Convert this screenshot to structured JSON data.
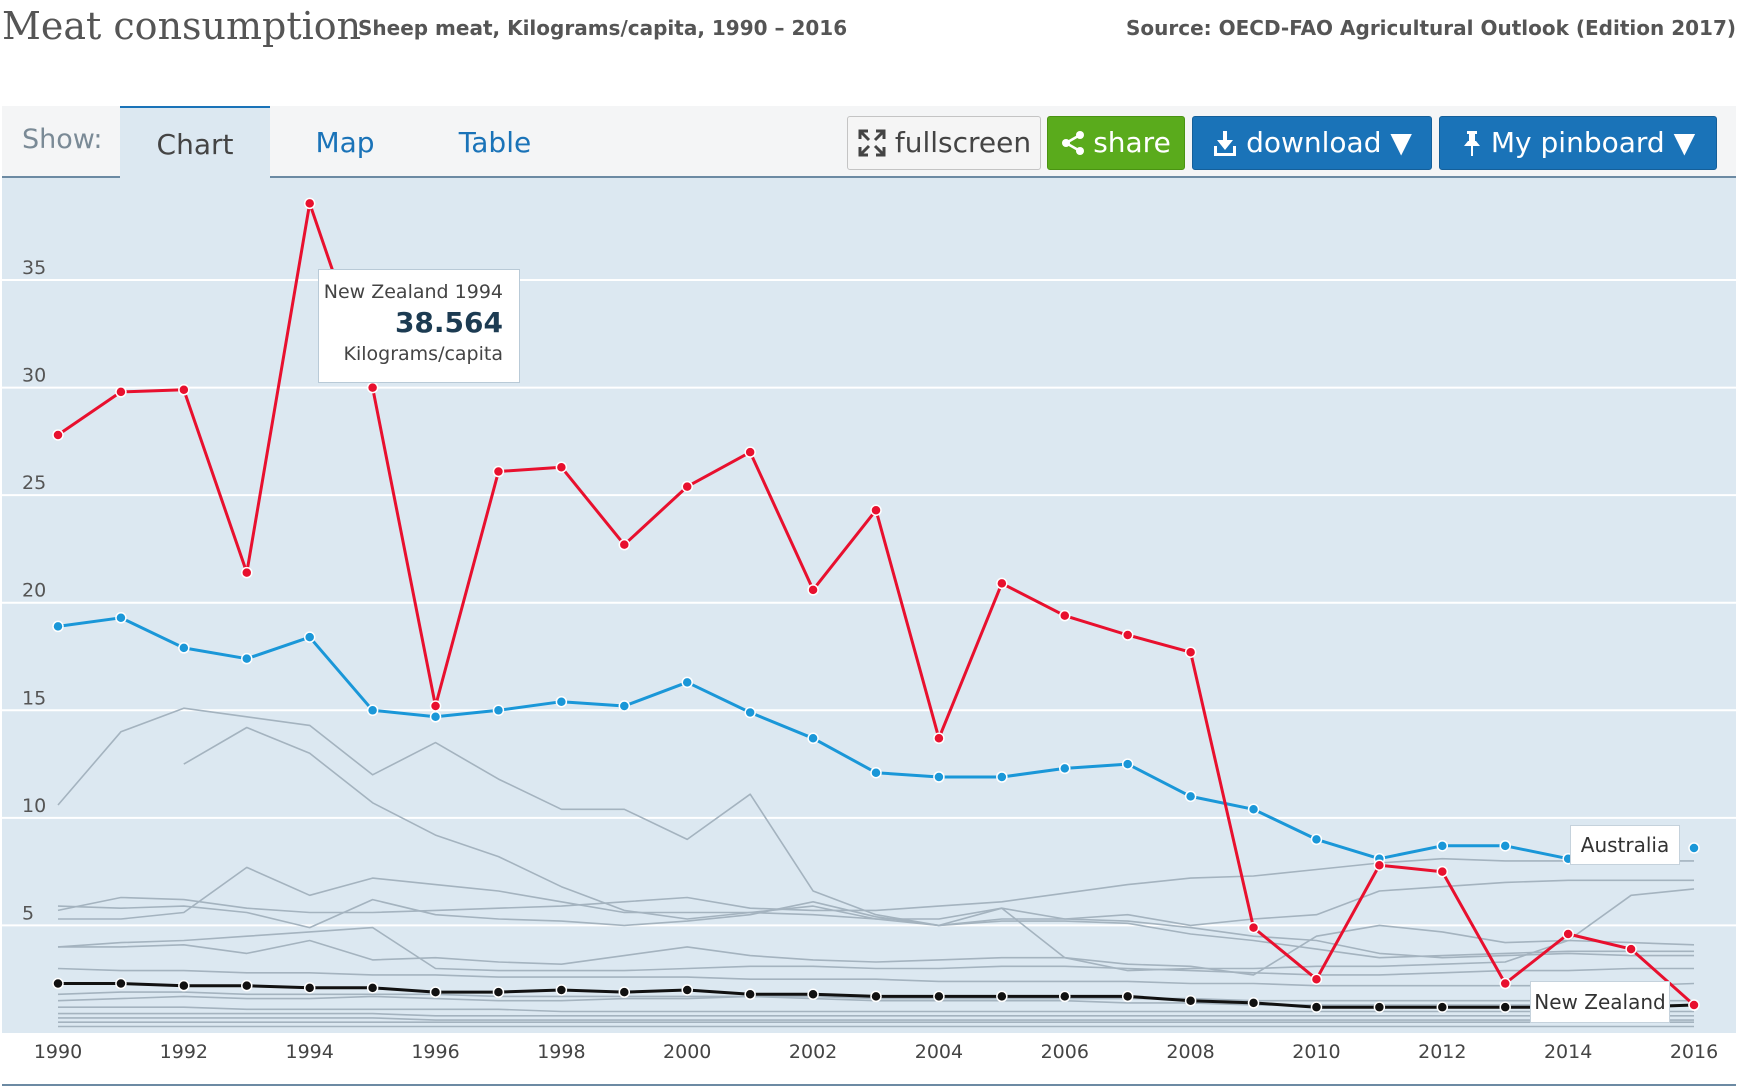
{
  "header": {
    "title": "Meat consumption",
    "subtitle": "Sheep meat, Kilograms/capita, 1990 – 2016",
    "source": "Source: OECD-FAO Agricultural Outlook (Edition 2017)"
  },
  "toolbar": {
    "show_label": "Show:",
    "tabs": [
      {
        "label": "Chart",
        "active": true
      },
      {
        "label": "Map",
        "active": false
      },
      {
        "label": "Table",
        "active": false
      }
    ],
    "fullscreen_label": "fullscreen",
    "share_label": "share",
    "download_label": "download ▼",
    "pinboard_label": "My pinboard ▼"
  },
  "tooltip": {
    "title": "New Zealand 1994",
    "value": "38.564",
    "unit": "Kilograms/capita"
  },
  "labels": {
    "australia": "Australia",
    "new_zealand": "New Zealand"
  },
  "colors": {
    "highlight_red": "#e8102e",
    "highlight_blue": "#1a97d8",
    "highlight_black": "#111111",
    "background_lines": "#a4b3bf",
    "plot_background": "#dce8f1"
  },
  "chart_data": {
    "type": "line",
    "title": "",
    "xlabel": "",
    "ylabel": "",
    "x": [
      1990,
      1991,
      1992,
      1993,
      1994,
      1995,
      1996,
      1997,
      1998,
      1999,
      2000,
      2001,
      2002,
      2003,
      2004,
      2005,
      2006,
      2007,
      2008,
      2009,
      2010,
      2011,
      2012,
      2013,
      2014,
      2015,
      2016
    ],
    "x_ticks": [
      1990,
      1992,
      1994,
      1996,
      1998,
      2000,
      2002,
      2004,
      2006,
      2008,
      2010,
      2012,
      2014,
      2016
    ],
    "y_ticks": [
      5,
      10,
      15,
      20,
      25,
      30,
      35
    ],
    "xlim": [
      1990,
      2016
    ],
    "ylim": [
      0,
      39
    ],
    "grid": "horizontal",
    "series": [
      {
        "name": "New Zealand",
        "highlight": "red",
        "values": [
          27.8,
          29.8,
          29.9,
          21.4,
          38.564,
          30.0,
          15.2,
          26.1,
          26.3,
          22.7,
          25.4,
          27.0,
          20.6,
          24.3,
          13.7,
          20.9,
          19.4,
          18.5,
          17.7,
          4.9,
          2.5,
          7.8,
          7.5,
          2.3,
          4.6,
          3.9,
          1.3
        ]
      },
      {
        "name": "Australia",
        "highlight": "blue",
        "values": [
          18.9,
          19.3,
          17.9,
          17.4,
          18.4,
          15.0,
          14.7,
          15.0,
          15.4,
          15.2,
          16.3,
          14.9,
          13.7,
          12.1,
          11.9,
          11.9,
          12.3,
          12.5,
          11.0,
          10.4,
          9.0,
          8.1,
          8.7,
          8.7,
          8.1,
          null,
          8.6
        ]
      },
      {
        "values": [
          2.3,
          2.3,
          2.2,
          2.2,
          2.1,
          2.1,
          1.9,
          1.9,
          2.0,
          1.9,
          2.0,
          1.8,
          1.8,
          1.7,
          1.7,
          1.7,
          1.7,
          1.7,
          1.5,
          1.4,
          1.2,
          1.2,
          1.2,
          1.2,
          1.2,
          1.2,
          1.3
        ],
        "highlight": "black"
      },
      {
        "values": [
          10.6,
          14.0,
          15.1,
          14.7,
          14.3,
          12.0,
          13.5,
          11.8,
          10.4,
          10.4,
          9.0,
          11.1,
          6.6,
          5.5,
          5.0,
          5.8,
          3.5,
          2.9,
          3.0,
          3.0,
          3.1,
          3.1,
          3.2,
          3.3,
          4.3,
          6.4,
          6.7
        ],
        "highlight": "none"
      },
      {
        "values": [
          null,
          null,
          12.5,
          14.2,
          13.0,
          10.7,
          9.2,
          8.2,
          6.8,
          5.7,
          5.3,
          5.6,
          5.9,
          5.3,
          5.3,
          5.8,
          5.3,
          5.2,
          4.9,
          4.5,
          4.3,
          3.7,
          3.5,
          3.6,
          3.7,
          3.6,
          3.6
        ],
        "highlight": "none"
      },
      {
        "values": [
          5.7,
          6.3,
          6.2,
          5.8,
          5.6,
          5.6,
          5.7,
          5.8,
          5.9,
          6.1,
          6.3,
          5.8,
          5.7,
          5.7,
          5.9,
          6.1,
          6.5,
          6.9,
          7.2,
          7.3,
          7.6,
          7.9,
          8.1,
          8.0,
          8.0,
          8.0,
          8.0
        ],
        "highlight": "none"
      },
      {
        "values": [
          5.3,
          5.3,
          5.6,
          7.7,
          6.4,
          7.2,
          6.9,
          6.6,
          6.1,
          5.6,
          5.6,
          5.6,
          5.5,
          5.3,
          5.0,
          5.2,
          5.2,
          5.1,
          4.6,
          4.3,
          3.9,
          3.5,
          3.6,
          3.7,
          3.8,
          3.8,
          3.8
        ],
        "highlight": "none"
      },
      {
        "values": [
          5.9,
          5.8,
          5.9,
          5.6,
          4.9,
          6.2,
          5.5,
          5.3,
          5.2,
          5.0,
          5.2,
          5.5,
          6.1,
          5.4,
          5.0,
          5.3,
          5.3,
          5.5,
          5.0,
          5.3,
          5.5,
          6.6,
          6.8,
          7.0,
          7.1,
          7.1,
          7.1
        ],
        "highlight": "none"
      },
      {
        "values": [
          4.0,
          4.2,
          4.3,
          4.5,
          4.7,
          4.9,
          3.0,
          2.9,
          2.9,
          2.9,
          3.0,
          3.1,
          3.1,
          3.0,
          3.0,
          3.1,
          3.1,
          3.0,
          2.9,
          2.8,
          2.7,
          2.7,
          2.8,
          2.9,
          2.9,
          3.0,
          3.0
        ],
        "highlight": "none"
      },
      {
        "values": [
          4.0,
          4.0,
          4.1,
          3.7,
          4.3,
          3.4,
          3.5,
          3.3,
          3.2,
          3.6,
          4.0,
          3.6,
          3.4,
          3.3,
          3.4,
          3.5,
          3.5,
          3.2,
          3.1,
          2.7,
          4.5,
          5.0,
          4.7,
          4.2,
          4.3,
          4.2,
          4.1
        ],
        "highlight": "none"
      },
      {
        "values": [
          3.0,
          2.9,
          2.9,
          2.8,
          2.8,
          2.7,
          2.7,
          2.6,
          2.6,
          2.6,
          2.6,
          2.5,
          2.5,
          2.5,
          2.4,
          2.4,
          2.4,
          2.4,
          2.3,
          2.3,
          2.2,
          2.2,
          2.2,
          2.2,
          2.2,
          2.2,
          2.3
        ],
        "highlight": "none"
      },
      {
        "values": [
          1.5,
          1.6,
          1.7,
          1.6,
          1.6,
          1.7,
          1.6,
          1.5,
          1.5,
          1.6,
          1.6,
          1.7,
          1.6,
          1.5,
          1.5,
          1.5,
          1.5,
          1.4,
          1.4,
          1.3,
          1.3,
          1.3,
          1.3,
          1.3,
          1.3,
          1.3,
          1.3
        ],
        "highlight": "none"
      },
      {
        "values": [
          1.2,
          1.2,
          1.2,
          1.1,
          1.1,
          1.1,
          1.1,
          1.1,
          1.0,
          1.0,
          1.0,
          1.0,
          1.0,
          1.0,
          1.0,
          1.0,
          1.0,
          1.0,
          1.0,
          1.0,
          1.0,
          1.0,
          1.0,
          1.0,
          1.0,
          1.0,
          1.0
        ],
        "highlight": "none"
      },
      {
        "values": [
          0.9,
          0.9,
          0.9,
          0.9,
          0.9,
          0.9,
          0.8,
          0.8,
          0.8,
          0.8,
          0.8,
          0.8,
          0.8,
          0.8,
          0.8,
          0.8,
          0.8,
          0.8,
          0.8,
          0.8,
          0.8,
          0.8,
          0.8,
          0.8,
          0.8,
          0.8,
          0.8
        ],
        "highlight": "none"
      },
      {
        "values": [
          0.7,
          0.7,
          0.7,
          0.7,
          0.7,
          0.7,
          0.6,
          0.6,
          0.6,
          0.6,
          0.6,
          0.6,
          0.6,
          0.6,
          0.6,
          0.6,
          0.6,
          0.6,
          0.6,
          0.6,
          0.6,
          0.6,
          0.6,
          0.6,
          0.6,
          0.6,
          0.6
        ],
        "highlight": "none"
      },
      {
        "values": [
          0.5,
          0.5,
          0.5,
          0.5,
          0.5,
          0.5,
          0.5,
          0.5,
          0.5,
          0.5,
          0.5,
          0.5,
          0.5,
          0.5,
          0.5,
          0.5,
          0.5,
          0.5,
          0.5,
          0.5,
          0.5,
          0.5,
          0.5,
          0.5,
          0.5,
          0.5,
          0.5
        ],
        "highlight": "none"
      },
      {
        "values": [
          0.3,
          0.3,
          0.3,
          0.3,
          0.3,
          0.3,
          0.3,
          0.3,
          0.3,
          0.3,
          0.3,
          0.3,
          0.3,
          0.3,
          0.3,
          0.3,
          0.3,
          0.3,
          0.3,
          0.3,
          0.3,
          0.3,
          0.3,
          0.3,
          0.3,
          0.3,
          0.3
        ],
        "highlight": "none"
      },
      {
        "values": [
          1.8,
          1.9,
          1.9,
          1.8,
          1.8,
          1.8,
          1.8,
          1.7,
          1.7,
          1.7,
          1.7,
          1.7,
          1.7,
          1.6,
          1.6,
          1.6,
          1.6,
          1.6,
          1.6,
          1.5,
          1.5,
          1.5,
          1.5,
          1.5,
          1.5,
          1.5,
          1.5
        ],
        "highlight": "none"
      }
    ]
  }
}
